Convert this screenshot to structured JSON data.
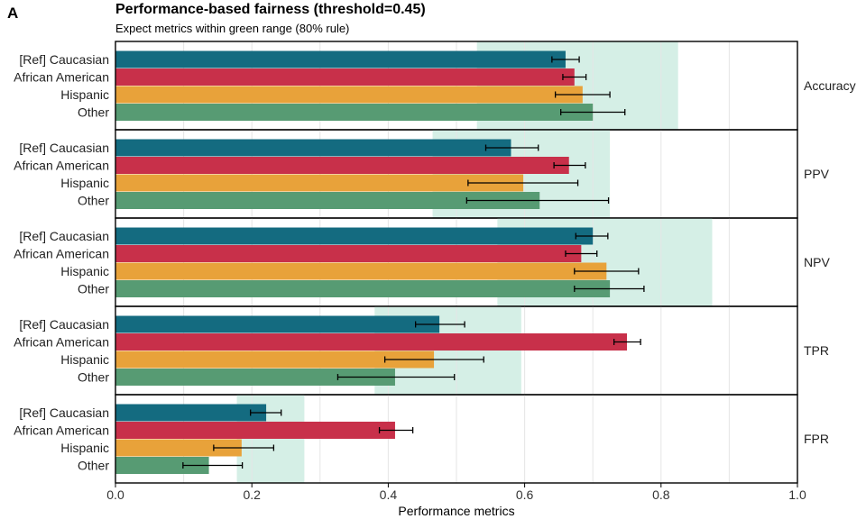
{
  "panel_label": "A",
  "chart_data": {
    "type": "bar",
    "orientation": "horizontal",
    "title": "Performance-based fairness (threshold=0.45)",
    "subtitle": "Expect metrics within green range (80% rule)",
    "xlabel": "Performance metrics",
    "xlim": [
      0.0,
      1.0
    ],
    "xticks": [
      "0.0",
      "0.2",
      "0.4",
      "0.6",
      "0.8",
      "1.0"
    ],
    "xtick_values": [
      0.0,
      0.2,
      0.4,
      0.6,
      0.8,
      1.0
    ],
    "grid": "vertical",
    "groups": [
      "[Ref] Caucasian",
      "African American",
      "Hispanic",
      "Other"
    ],
    "colors": {
      "[Ref] Caucasian": "#146B80",
      "African American": "#C8304A",
      "Hispanic": "#E8A23A",
      "Other": "#579B73",
      "green_range": "#D5EFE6",
      "grid": "#E5E5E5",
      "frame": "#000000"
    },
    "facets": [
      {
        "metric": "Accuracy",
        "green_range": [
          0.53,
          0.825
        ],
        "values": [
          0.66,
          0.673,
          0.685,
          0.7
        ],
        "ci_low": [
          0.64,
          0.656,
          0.645,
          0.653
        ],
        "ci_high": [
          0.68,
          0.69,
          0.725,
          0.747
        ]
      },
      {
        "metric": "PPV",
        "green_range": [
          0.465,
          0.725
        ],
        "values": [
          0.58,
          0.665,
          0.598,
          0.622
        ],
        "ci_low": [
          0.543,
          0.643,
          0.517,
          0.515
        ],
        "ci_high": [
          0.62,
          0.689,
          0.678,
          0.723
        ]
      },
      {
        "metric": "NPV",
        "green_range": [
          0.56,
          0.875
        ],
        "values": [
          0.7,
          0.683,
          0.72,
          0.725
        ],
        "ci_low": [
          0.675,
          0.66,
          0.673,
          0.673
        ],
        "ci_high": [
          0.722,
          0.706,
          0.767,
          0.775
        ]
      },
      {
        "metric": "TPR",
        "green_range": [
          0.38,
          0.595
        ],
        "values": [
          0.475,
          0.75,
          0.467,
          0.41
        ],
        "ci_low": [
          0.44,
          0.731,
          0.395,
          0.326
        ],
        "ci_high": [
          0.512,
          0.77,
          0.54,
          0.497
        ]
      },
      {
        "metric": "FPR",
        "green_range": [
          0.178,
          0.277
        ],
        "values": [
          0.221,
          0.41,
          0.185,
          0.137
        ],
        "ci_low": [
          0.198,
          0.387,
          0.144,
          0.099
        ],
        "ci_high": [
          0.243,
          0.436,
          0.232,
          0.186
        ]
      }
    ]
  }
}
